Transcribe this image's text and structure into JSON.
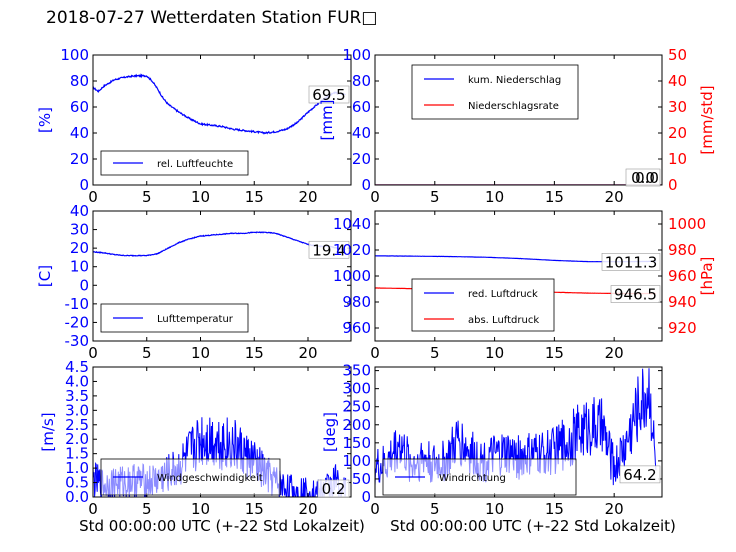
{
  "title": "2018-07-27 Wetterdaten Station FUR□",
  "xlabel": "Std 00:00:00 UTC (+-22 Std Lokalzeit)",
  "colors": {
    "left_axis": "#0000ff",
    "right_axis": "#ff0000",
    "series_blue": "#0000ff",
    "series_red": "#ff0000"
  },
  "chart_data": [
    {
      "id": "humidity",
      "type": "line",
      "ylabel": "[%]",
      "ylim": [
        0,
        100
      ],
      "yticks": [
        0,
        20,
        40,
        60,
        80,
        100
      ],
      "xlim": [
        0,
        24
      ],
      "xticks": [
        0,
        5,
        10,
        15,
        20
      ],
      "series": [
        {
          "name": "rel. Luftfeuchte",
          "axis": "left",
          "color": "#0000ff",
          "noise": 1.2,
          "x": [
            0,
            0.5,
            1,
            2,
            3,
            4,
            5,
            5.5,
            6,
            6.5,
            7,
            8,
            9,
            10,
            11,
            12,
            13,
            14,
            15,
            16,
            17,
            18,
            19,
            20,
            21,
            22,
            22.5,
            23,
            23.5
          ],
          "y": [
            75,
            72,
            76,
            81,
            83,
            84,
            84,
            80,
            74,
            67,
            62,
            56,
            51,
            47,
            46,
            45,
            43,
            42,
            41,
            40,
            41,
            43,
            48,
            56,
            63,
            69,
            71,
            70,
            70
          ]
        }
      ],
      "legend": "lower-left",
      "last_value": "69.5"
    },
    {
      "id": "precipitation",
      "type": "line",
      "ylabel": "[mm]",
      "ylim": [
        0,
        100
      ],
      "yticks": [
        0,
        20,
        40,
        60,
        80,
        100
      ],
      "ylabel_right": "[mm/std]",
      "ylim_right": [
        0,
        50
      ],
      "yticks_right": [
        0,
        10,
        20,
        30,
        40,
        50
      ],
      "xlim": [
        0,
        24
      ],
      "xticks": [
        0,
        5,
        10,
        15,
        20
      ],
      "series": [
        {
          "name": "kum. Niederschlag",
          "axis": "left",
          "color": "#0000ff",
          "noise": 0,
          "x": [
            0,
            24
          ],
          "y": [
            0,
            0
          ]
        },
        {
          "name": "Niederschlagsrate",
          "axis": "right",
          "color": "#ff0000",
          "noise": 0,
          "x": [
            0,
            24
          ],
          "y": [
            0,
            0
          ]
        }
      ],
      "legend": "upper-left",
      "last_value": "0.0",
      "last_value_right": "0.0"
    },
    {
      "id": "temperature",
      "type": "line",
      "ylabel": "[C]",
      "ylim": [
        -30,
        40
      ],
      "yticks": [
        -30,
        -20,
        -10,
        0,
        10,
        20,
        30,
        40
      ],
      "xlim": [
        0,
        24
      ],
      "xticks": [
        0,
        5,
        10,
        15,
        20
      ],
      "series": [
        {
          "name": "Lufttemperatur",
          "axis": "left",
          "color": "#0000ff",
          "noise": 0.4,
          "x": [
            0,
            1,
            2,
            3,
            4,
            5,
            6,
            7,
            8,
            9,
            10,
            11,
            12,
            13,
            14,
            15,
            16,
            17,
            18,
            19,
            20,
            21,
            22,
            23,
            23.5
          ],
          "y": [
            18,
            17.5,
            16.5,
            16,
            16,
            16,
            17,
            20,
            23,
            25,
            26.5,
            27,
            27.5,
            28,
            28,
            28.5,
            28.5,
            28,
            26,
            24,
            22,
            21,
            21,
            19.5,
            19.4
          ]
        }
      ],
      "legend": "lower-left",
      "last_value": "19.4"
    },
    {
      "id": "pressure",
      "type": "line",
      "ylim": [
        950,
        1050
      ],
      "yticks": [
        960,
        980,
        1000,
        1020,
        1040
      ],
      "ylabel_right": "[hPa]",
      "ylim_right": [
        910,
        1010
      ],
      "yticks_right": [
        920,
        940,
        960,
        980,
        1000
      ],
      "xlim": [
        0,
        24
      ],
      "xticks": [
        0,
        5,
        10,
        15,
        20
      ],
      "series": [
        {
          "name": "red. Luftdruck",
          "axis": "left",
          "color": "#0000ff",
          "noise": 0.1,
          "x": [
            0,
            3,
            6,
            9,
            12,
            15,
            18,
            21,
            23.5
          ],
          "y": [
            1015.5,
            1015.3,
            1015,
            1014.5,
            1013.5,
            1012,
            1011,
            1011,
            1011.3
          ]
        },
        {
          "name": "abs. Luftdruck",
          "axis": "right",
          "color": "#ff0000",
          "noise": 0.1,
          "x": [
            0,
            3,
            6,
            9,
            12,
            15,
            18,
            21,
            23.5
          ],
          "y": [
            950.8,
            950.3,
            950.3,
            949.5,
            948.5,
            947.5,
            946.8,
            946.5,
            946.5
          ]
        }
      ],
      "legend": "lower-left",
      "last_value": "1011.3",
      "last_value_right": "946.5"
    },
    {
      "id": "wind_speed",
      "type": "line",
      "ylabel": "[m/s]",
      "ylim": [
        0,
        4.5
      ],
      "yticks": [
        0.0,
        0.5,
        1.0,
        1.5,
        2.0,
        2.5,
        3.0,
        3.5,
        4.0,
        4.5
      ],
      "xlim": [
        0,
        24
      ],
      "xticks": [
        0,
        5,
        10,
        15,
        20
      ],
      "series": [
        {
          "name": "Windgeschwindigkeit",
          "axis": "left",
          "color": "#0000ff",
          "spiky": true,
          "noise": 1.2,
          "x": [
            0,
            1,
            2,
            3,
            4,
            5,
            6,
            7,
            8,
            9,
            10,
            11,
            12,
            13,
            14,
            15,
            16,
            17,
            18,
            19,
            20,
            21,
            22,
            22.5,
            23,
            23.5
          ],
          "y": [
            0.6,
            0.4,
            0.5,
            0.5,
            0.6,
            0.5,
            0.6,
            0.8,
            1.0,
            1.5,
            2.0,
            2.0,
            1.9,
            1.8,
            1.5,
            1.2,
            0.8,
            0.5,
            0.3,
            0.2,
            0.2,
            0.1,
            0.4,
            0.6,
            0.3,
            0.2
          ]
        }
      ],
      "legend": "lower-left",
      "last_value": "0.2"
    },
    {
      "id": "wind_direction",
      "type": "line",
      "ylabel": "[deg]",
      "ylim": [
        0,
        360
      ],
      "yticks": [
        0,
        50,
        100,
        150,
        200,
        250,
        300,
        350
      ],
      "xlim": [
        0,
        24
      ],
      "xticks": [
        0,
        5,
        10,
        15,
        20
      ],
      "series": [
        {
          "name": "Windrichtung",
          "axis": "left",
          "color": "#0000ff",
          "spiky": true,
          "noise": 90,
          "x": [
            0,
            1,
            2,
            3,
            4,
            5,
            6,
            7,
            8,
            9,
            10,
            11,
            12,
            13,
            14,
            15,
            16,
            17,
            18,
            19,
            20,
            21,
            22,
            23,
            23.5
          ],
          "y": [
            80,
            90,
            150,
            90,
            110,
            90,
            100,
            160,
            120,
            100,
            110,
            120,
            110,
            115,
            120,
            130,
            150,
            180,
            200,
            190,
            80,
            150,
            250,
            300,
            64
          ]
        }
      ],
      "legend": "lower-left",
      "last_value": "64.2"
    }
  ]
}
